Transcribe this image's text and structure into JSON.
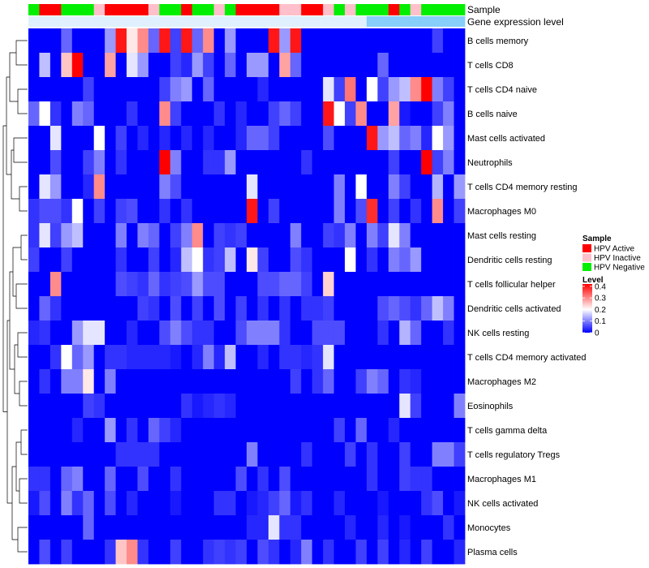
{
  "chart_data": {
    "type": "heatmap",
    "title": "",
    "annotation_tracks": [
      "Sample",
      "Gene expression level"
    ],
    "sample_groups": [
      "HPV Active",
      "HPV Inactive",
      "HPV Negative"
    ],
    "sample_colors": {
      "HPV Active": "#ff0000",
      "HPV Inactive": "#ffc0cb",
      "HPV Negative": "#00ee00"
    },
    "sample_annotation": [
      "HPV Negative",
      "HPV Active",
      "HPV Active",
      "HPV Negative",
      "HPV Negative",
      "HPV Negative",
      "HPV Inactive",
      "HPV Active",
      "HPV Active",
      "HPV Active",
      "HPV Active",
      "HPV Inactive",
      "HPV Negative",
      "HPV Negative",
      "HPV Active",
      "HPV Negative",
      "HPV Negative",
      "HPV Inactive",
      "HPV Negative",
      "HPV Active",
      "HPV Active",
      "HPV Active",
      "HPV Active",
      "HPV Inactive",
      "HPV Inactive",
      "HPV Active",
      "HPV Active",
      "HPV Inactive",
      "HPV Negative",
      "HPV Inactive",
      "HPV Negative",
      "HPV Negative",
      "HPV Negative",
      "HPV Active",
      "HPV Negative",
      "HPV Inactive",
      "HPV Negative",
      "HPV Negative",
      "HPV Negative",
      "HPV Negative"
    ],
    "gene_expression_split": 31,
    "gene_expression_colors": [
      "#e0f0ff",
      "#87cefa"
    ],
    "rows": [
      "B cells memory",
      "T cells CD8",
      "T cells CD4 naive",
      "B cells naive",
      "Mast cells activated",
      "Neutrophils",
      "T cells CD4 memory resting",
      "Macrophages M0",
      "Mast cells resting",
      "Dendritic cells resting",
      "T cells follicular helper",
      "Dendritic cells activated",
      "NK cells resting",
      "T cells CD4 memory activated",
      "Macrophages M2",
      "Eosinophils",
      "T cells gamma delta",
      "T cells regulatory  Tregs",
      "Macrophages M1",
      "NK cells activated",
      "Monocytes",
      "Plasma cells"
    ],
    "values": [
      [
        0,
        0,
        0,
        0.08,
        0,
        0,
        0,
        0.12,
        0.4,
        0.22,
        0.3,
        0.08,
        0.4,
        0.05,
        0.4,
        0.08,
        0.3,
        0,
        0.12,
        0,
        0,
        0,
        0.4,
        0.12,
        0.4,
        0,
        0,
        0,
        0,
        0,
        0,
        0,
        0,
        0,
        0,
        0,
        0,
        0.05,
        0,
        0
      ],
      [
        0,
        0.15,
        0,
        0.25,
        0.42,
        0,
        0,
        0.28,
        0,
        0.18,
        0.12,
        0,
        0,
        0.05,
        0.03,
        0.12,
        0.05,
        0,
        0.08,
        0,
        0.12,
        0.12,
        0,
        0.28,
        0.08,
        0,
        0,
        0,
        0,
        0,
        0,
        0,
        0.08,
        0,
        0,
        0,
        0,
        0,
        0,
        0
      ],
      [
        0,
        0,
        0,
        0,
        0,
        0.05,
        0,
        0,
        0,
        0,
        0,
        0,
        0.05,
        0.1,
        0.12,
        0,
        0.08,
        0,
        0,
        0,
        0,
        0.03,
        0,
        0,
        0,
        0,
        0,
        0.18,
        0.05,
        0.32,
        0,
        0.2,
        0.05,
        0.12,
        0.15,
        0.3,
        0.42,
        0.1,
        0.05,
        0
      ],
      [
        0.08,
        0.2,
        0.04,
        0,
        0.1,
        0.08,
        0,
        0,
        0,
        0.04,
        0,
        0,
        0.3,
        0.05,
        0,
        0,
        0,
        0.04,
        0,
        0.03,
        0,
        0,
        0.05,
        0.08,
        0.05,
        0,
        0,
        0.4,
        0.2,
        0.05,
        0.3,
        0,
        0,
        0.28,
        0.02,
        0,
        0,
        0.05,
        0.1,
        0
      ],
      [
        0,
        0,
        0.18,
        0,
        0,
        0,
        0.2,
        0,
        0.05,
        0,
        0.03,
        0,
        0.03,
        0,
        0.03,
        0,
        0.03,
        0,
        0,
        0.03,
        0.08,
        0.08,
        0.05,
        0,
        0,
        0,
        0,
        0.06,
        0,
        0,
        0,
        0.4,
        0.12,
        0.15,
        0.08,
        0.1,
        0.03,
        0.2,
        0.12,
        0
      ],
      [
        0,
        0,
        0.06,
        0,
        0,
        0.05,
        0.1,
        0,
        0.04,
        0,
        0,
        0,
        0.42,
        0.1,
        0,
        0,
        0.04,
        0.04,
        0.12,
        0,
        0,
        0,
        0,
        0,
        0,
        0.04,
        0,
        0,
        0,
        0,
        0,
        0,
        0,
        0.05,
        0,
        0,
        0.42,
        0.05,
        0.1,
        0
      ],
      [
        0,
        0.18,
        0.12,
        0,
        0,
        0.03,
        0.3,
        0,
        0,
        0,
        0,
        0,
        0.1,
        0.06,
        0,
        0,
        0,
        0,
        0,
        0,
        0.18,
        0,
        0,
        0,
        0,
        0,
        0,
        0,
        0.1,
        0,
        0.2,
        0,
        0,
        0.1,
        0.05,
        0,
        0,
        0.14,
        0,
        0.12
      ],
      [
        0.04,
        0.06,
        0.06,
        0.04,
        0.2,
        0,
        0.05,
        0,
        0.05,
        0.06,
        0,
        0,
        0.04,
        0,
        0.04,
        0,
        0,
        0,
        0,
        0,
        0.4,
        0,
        0.05,
        0,
        0,
        0,
        0,
        0,
        0.1,
        0,
        0.06,
        0.38,
        0,
        0.05,
        0,
        0.04,
        0,
        0.3,
        0,
        0.05
      ],
      [
        0.04,
        0.18,
        0.05,
        0.12,
        0.15,
        0,
        0,
        0,
        0.1,
        0,
        0.1,
        0.08,
        0,
        0.05,
        0.1,
        0.3,
        0,
        0.05,
        0.04,
        0.05,
        0,
        0,
        0,
        0,
        0.1,
        0,
        0,
        0.05,
        0.04,
        0.1,
        0,
        0.1,
        0.05,
        0.18,
        0.1,
        0,
        0,
        0,
        0,
        0
      ],
      [
        0.05,
        0,
        0,
        0.05,
        0,
        0,
        0,
        0,
        0.04,
        0,
        0,
        0.05,
        0,
        0.03,
        0.15,
        0.2,
        0.04,
        0.05,
        0.15,
        0,
        0.22,
        0.05,
        0,
        0,
        0.06,
        0.04,
        0,
        0,
        0,
        0.2,
        0,
        0.04,
        0,
        0.1,
        0.08,
        0.12,
        0,
        0,
        0,
        0
      ],
      [
        0,
        0,
        0.3,
        0,
        0,
        0,
        0,
        0,
        0.06,
        0.05,
        0.04,
        0.08,
        0.04,
        0.05,
        0.06,
        0.12,
        0.06,
        0.06,
        0,
        0,
        0,
        0.06,
        0.06,
        0.08,
        0.08,
        0.05,
        0,
        0.24,
        0,
        0,
        0,
        0,
        0,
        0,
        0,
        0,
        0,
        0,
        0,
        0
      ],
      [
        0,
        0.08,
        0.04,
        0,
        0,
        0,
        0,
        0,
        0,
        0,
        0.05,
        0.04,
        0,
        0.06,
        0,
        0.05,
        0,
        0.06,
        0,
        0.05,
        0,
        0.04,
        0,
        0.04,
        0,
        0.04,
        0.04,
        0.05,
        0,
        0,
        0,
        0,
        0.06,
        0.08,
        0.06,
        0.04,
        0.08,
        0.15,
        0.1,
        0
      ],
      [
        0.03,
        0.04,
        0,
        0,
        0.12,
        0.18,
        0.18,
        0,
        0,
        0.03,
        0,
        0,
        0.06,
        0.1,
        0.06,
        0.04,
        0.04,
        0,
        0,
        0.06,
        0.1,
        0.1,
        0.1,
        0.04,
        0,
        0,
        0.06,
        0.06,
        0.06,
        0,
        0,
        0,
        0.04,
        0,
        0.14,
        0.08,
        0,
        0,
        0.04,
        0
      ],
      [
        0,
        0,
        0.04,
        0.2,
        0.08,
        0.12,
        0,
        0.04,
        0.04,
        0.03,
        0.03,
        0.03,
        0.03,
        0.02,
        0,
        0.03,
        0.1,
        0.03,
        0.15,
        0,
        0,
        0.03,
        0,
        0.04,
        0.04,
        0.03,
        0.04,
        0.18,
        0,
        0,
        0,
        0,
        0,
        0,
        0,
        0,
        0,
        0,
        0,
        0
      ],
      [
        0,
        0.04,
        0,
        0.1,
        0.1,
        0.22,
        0,
        0.1,
        0,
        0,
        0,
        0,
        0,
        0,
        0,
        0,
        0,
        0,
        0,
        0,
        0,
        0,
        0,
        0,
        0.05,
        0,
        0.04,
        0.08,
        0,
        0,
        0.05,
        0.1,
        0.08,
        0,
        0.04,
        0.03,
        0,
        0,
        0,
        0
      ],
      [
        0,
        0,
        0,
        0,
        0,
        0.05,
        0.04,
        0,
        0,
        0,
        0,
        0,
        0,
        0,
        0.04,
        0.02,
        0.03,
        0.04,
        0.03,
        0,
        0,
        0,
        0,
        0,
        0,
        0,
        0,
        0,
        0,
        0,
        0,
        0,
        0,
        0,
        0.18,
        0.05,
        0,
        0,
        0,
        0.1
      ],
      [
        0,
        0,
        0,
        0,
        0.03,
        0,
        0,
        0.12,
        0,
        0.04,
        0,
        0.08,
        0.05,
        0.03,
        0,
        0,
        0,
        0,
        0,
        0,
        0,
        0,
        0,
        0,
        0,
        0,
        0,
        0,
        0.05,
        0,
        0.08,
        0,
        0,
        0.03,
        0,
        0,
        0,
        0,
        0,
        0
      ],
      [
        0,
        0,
        0,
        0,
        0,
        0,
        0,
        0,
        0.04,
        0.04,
        0.04,
        0.04,
        0,
        0,
        0,
        0,
        0,
        0,
        0,
        0,
        0.1,
        0,
        0,
        0,
        0,
        0.04,
        0,
        0,
        0,
        0.05,
        0,
        0.04,
        0,
        0,
        0.05,
        0,
        0,
        0.1,
        0.1,
        0.05
      ],
      [
        0.04,
        0.04,
        0,
        0.08,
        0.1,
        0,
        0,
        0.08,
        0,
        0,
        0.06,
        0,
        0,
        0.04,
        0,
        0,
        0,
        0,
        0,
        0.06,
        0,
        0.04,
        0,
        0.06,
        0,
        0,
        0,
        0,
        0,
        0,
        0,
        0.04,
        0,
        0,
        0.05,
        0.04,
        0.04,
        0,
        0,
        0
      ],
      [
        0.02,
        0.06,
        0,
        0.1,
        0.04,
        0.08,
        0,
        0.06,
        0,
        0.03,
        0,
        0,
        0,
        0.02,
        0,
        0,
        0,
        0.04,
        0.04,
        0,
        0.02,
        0.03,
        0.05,
        0.08,
        0.02,
        0.04,
        0,
        0,
        0.03,
        0,
        0,
        0,
        0.02,
        0,
        0,
        0,
        0.04,
        0.06,
        0,
        0.02
      ],
      [
        0,
        0,
        0,
        0,
        0,
        0.08,
        0,
        0,
        0,
        0,
        0,
        0,
        0,
        0,
        0,
        0,
        0,
        0,
        0,
        0,
        0.03,
        0.03,
        0.18,
        0.04,
        0.04,
        0,
        0,
        0,
        0,
        0.03,
        0,
        0,
        0.03,
        0,
        0.02,
        0,
        0,
        0,
        0.04,
        0
      ],
      [
        0,
        0.06,
        0,
        0.05,
        0,
        0,
        0,
        0.04,
        0.25,
        0.3,
        0.04,
        0,
        0,
        0.05,
        0,
        0,
        0.04,
        0.05,
        0.04,
        0.05,
        0,
        0.06,
        0.04,
        0,
        0.03,
        0.1,
        0,
        0.04,
        0,
        0,
        0.05,
        0,
        0.05,
        0,
        0.03,
        0,
        0.05,
        0,
        0,
        0.03
      ]
    ],
    "color_scale": {
      "low": "#0000ff",
      "mid": "#ffffff",
      "high": "#ff0000",
      "midpoint": 0.2,
      "min": 0,
      "max": 0.42
    },
    "legend": {
      "sample_title": "Sample",
      "level_title": "Level",
      "level_ticks": [
        0.4,
        0.3,
        0.2,
        0.1,
        0
      ],
      "level_tick_labels": [
        "0.4",
        "0.3",
        "0.2",
        "0.1",
        "0"
      ]
    },
    "legend_position": "right"
  }
}
